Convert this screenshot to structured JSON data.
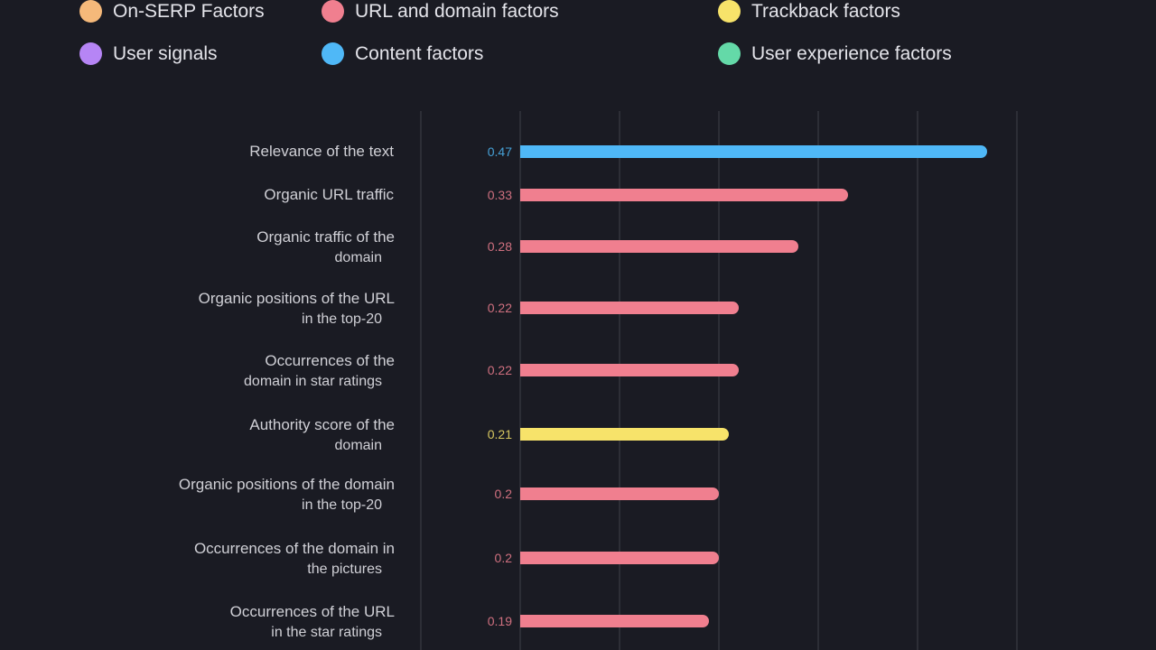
{
  "legend": [
    {
      "label": "On-SERP Factors",
      "color": "#f5b97a"
    },
    {
      "label": "URL and domain factors",
      "color": "#f07f8f"
    },
    {
      "label": "Trackback factors",
      "color": "#f7e36a"
    },
    {
      "label": "User signals",
      "color": "#b685f5"
    },
    {
      "label": "Content factors",
      "color": "#4fb8f7"
    },
    {
      "label": "User experience factors",
      "color": "#64d9a8"
    }
  ],
  "chart_data": {
    "type": "bar",
    "orientation": "horizontal",
    "title": "",
    "xlabel": "",
    "ylabel": "",
    "xlim": [
      0,
      0.5
    ],
    "grid": true,
    "legend_position": "top",
    "categories": [
      {
        "lines": [
          "Relevance of the text"
        ],
        "value": 0.47,
        "value_label": "0.47",
        "group": "Content factors",
        "color": "#4fb8f7"
      },
      {
        "lines": [
          "Organic URL traffic"
        ],
        "value": 0.33,
        "value_label": "0.33",
        "group": "URL and domain factors",
        "color": "#f07f8f"
      },
      {
        "lines": [
          "Organic traffic of the",
          "domain"
        ],
        "value": 0.28,
        "value_label": "0.28",
        "group": "URL and domain factors",
        "color": "#f07f8f"
      },
      {
        "lines": [
          "Organic positions of the URL",
          "in the top-20"
        ],
        "value": 0.22,
        "value_label": "0.22",
        "group": "URL and domain factors",
        "color": "#f07f8f"
      },
      {
        "lines": [
          "Occurrences of the",
          "domain in star ratings"
        ],
        "value": 0.22,
        "value_label": "0.22",
        "group": "URL and domain factors",
        "color": "#f07f8f"
      },
      {
        "lines": [
          "Authority score of the",
          "domain"
        ],
        "value": 0.21,
        "value_label": "0.21",
        "group": "Trackback factors",
        "color": "#f7e36a"
      },
      {
        "lines": [
          "Organic positions of the domain",
          "in the top-20"
        ],
        "value": 0.2,
        "value_label": "0.2",
        "group": "URL and domain factors",
        "color": "#f07f8f"
      },
      {
        "lines": [
          "Occurrences of the domain in",
          "the pictures"
        ],
        "value": 0.2,
        "value_label": "0.2",
        "group": "URL and domain factors",
        "color": "#f07f8f"
      },
      {
        "lines": [
          "Occurrences of the URL",
          "in the star ratings"
        ],
        "value": 0.19,
        "value_label": "0.19",
        "group": "URL and domain factors",
        "color": "#f07f8f"
      }
    ]
  }
}
